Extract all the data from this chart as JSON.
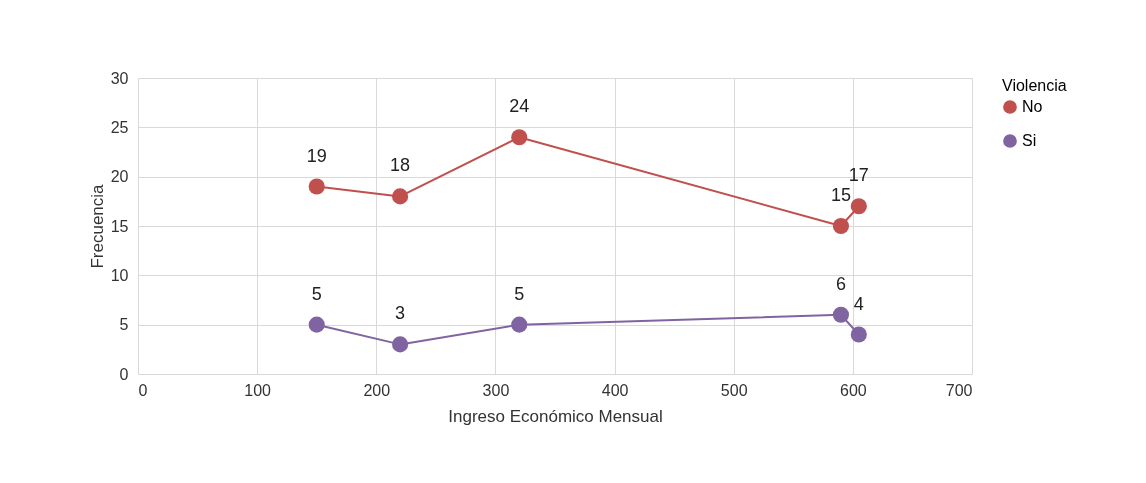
{
  "chart_data": {
    "type": "line",
    "xlabel": "Ingreso Económico Mensual",
    "ylabel": "Frecuencia",
    "legend_title": "Violencia",
    "x": [
      150,
      220,
      320,
      590,
      605
    ],
    "series": [
      {
        "name": "No",
        "color": "#c0504d",
        "values": [
          19,
          18,
          24,
          15,
          17
        ]
      },
      {
        "name": "Si",
        "color": "#8064a2",
        "values": [
          5,
          3,
          5,
          6,
          4
        ]
      }
    ],
    "xlim": [
      0,
      700
    ],
    "xticks": [
      0,
      100,
      200,
      300,
      400,
      500,
      600,
      700
    ],
    "ylim": [
      0,
      30
    ],
    "yticks": [
      0,
      5,
      10,
      15,
      20,
      25,
      30
    ],
    "grid": true,
    "legend": "right",
    "marker": "circle",
    "line_style": "solid",
    "data_labels": true
  }
}
